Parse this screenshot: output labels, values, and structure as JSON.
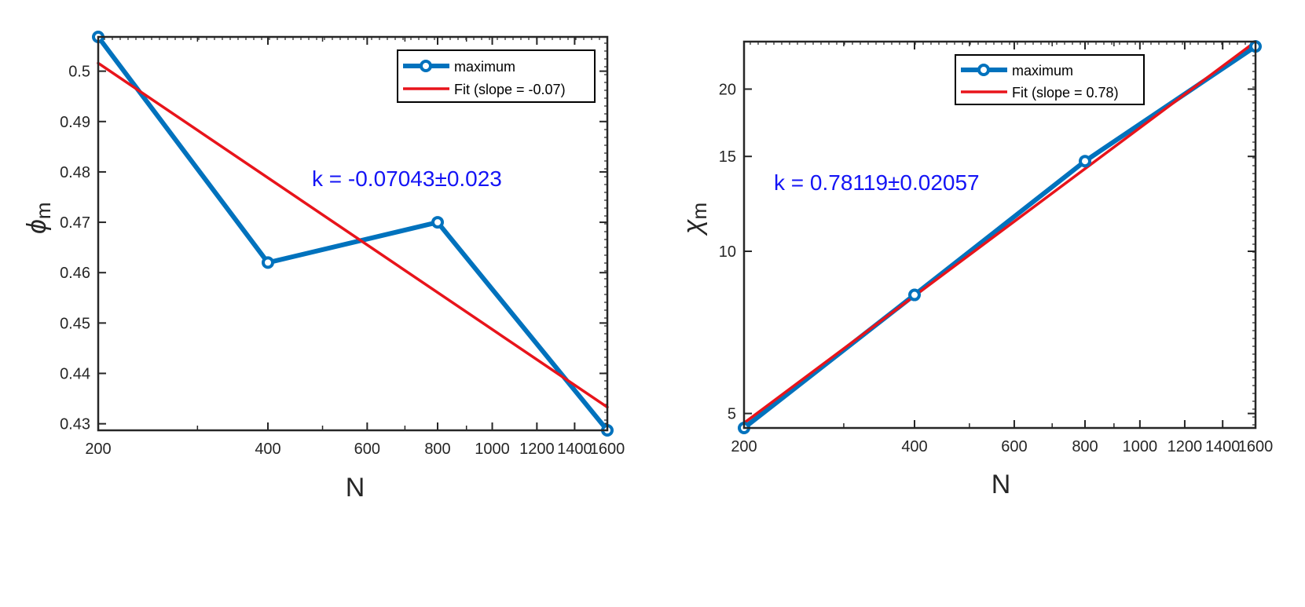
{
  "colors": {
    "data_line": "#0072BD",
    "fit_line": "#E8141B",
    "annotation": "#1414F5",
    "axes": "#262626"
  },
  "chart_data": [
    {
      "type": "line",
      "x_scale": "log",
      "y_scale": "linear",
      "xlabel": "N",
      "ylabel": {
        "base": "ϕ",
        "subscript": "m"
      },
      "xlim": [
        200,
        1600
      ],
      "ylim": [
        0.4287,
        0.5068
      ],
      "xticks": [
        200,
        400,
        600,
        800,
        1000,
        1200,
        1400,
        1600
      ],
      "xtick_labels": [
        "200",
        "400",
        "600",
        "800",
        "1000",
        "1200",
        "1400",
        "1600"
      ],
      "yticks": [
        0.43,
        0.44,
        0.45,
        0.46,
        0.47,
        0.48,
        0.49,
        0.5
      ],
      "ytick_labels": [
        "0.43",
        "0.44",
        "0.45",
        "0.46",
        "0.47",
        "0.48",
        "0.49",
        "0.5"
      ],
      "series": [
        {
          "name": "maximum",
          "marker": "circle",
          "x": [
            200,
            400,
            800,
            1600
          ],
          "y": [
            0.5068,
            0.462,
            0.47,
            0.4287
          ]
        },
        {
          "name": "Fit (slope = -0.07)",
          "marker": "none",
          "x": [
            200,
            1600
          ],
          "y": [
            0.5016,
            0.4333
          ]
        }
      ],
      "annotation": "k = -0.07043±0.023",
      "legend_location": "top-right",
      "grid": false
    },
    {
      "type": "line",
      "x_scale": "log",
      "y_scale": "log",
      "xlabel": "N",
      "ylabel": {
        "base": "χ",
        "subscript": "m"
      },
      "xlim": [
        200,
        1600
      ],
      "ylim": [
        4.7,
        24.5
      ],
      "xticks": [
        200,
        400,
        600,
        800,
        1000,
        1200,
        1400,
        1600
      ],
      "xtick_labels": [
        "200",
        "400",
        "600",
        "800",
        "1000",
        "1200",
        "1400",
        "1600"
      ],
      "yticks": [
        5,
        10,
        15,
        20
      ],
      "ytick_labels": [
        "5",
        "10",
        "15",
        "20"
      ],
      "series": [
        {
          "name": "maximum",
          "marker": "circle",
          "x": [
            200,
            400,
            800,
            1600
          ],
          "y": [
            4.7,
            8.3,
            14.7,
            24.0
          ]
        },
        {
          "name": "Fit (slope = 0.78)",
          "marker": "none",
          "x": [
            200,
            1600
          ],
          "y": [
            4.8,
            24.5
          ]
        }
      ],
      "annotation": "k = 0.78119±0.02057",
      "legend_location": "top-center",
      "grid": false
    }
  ]
}
